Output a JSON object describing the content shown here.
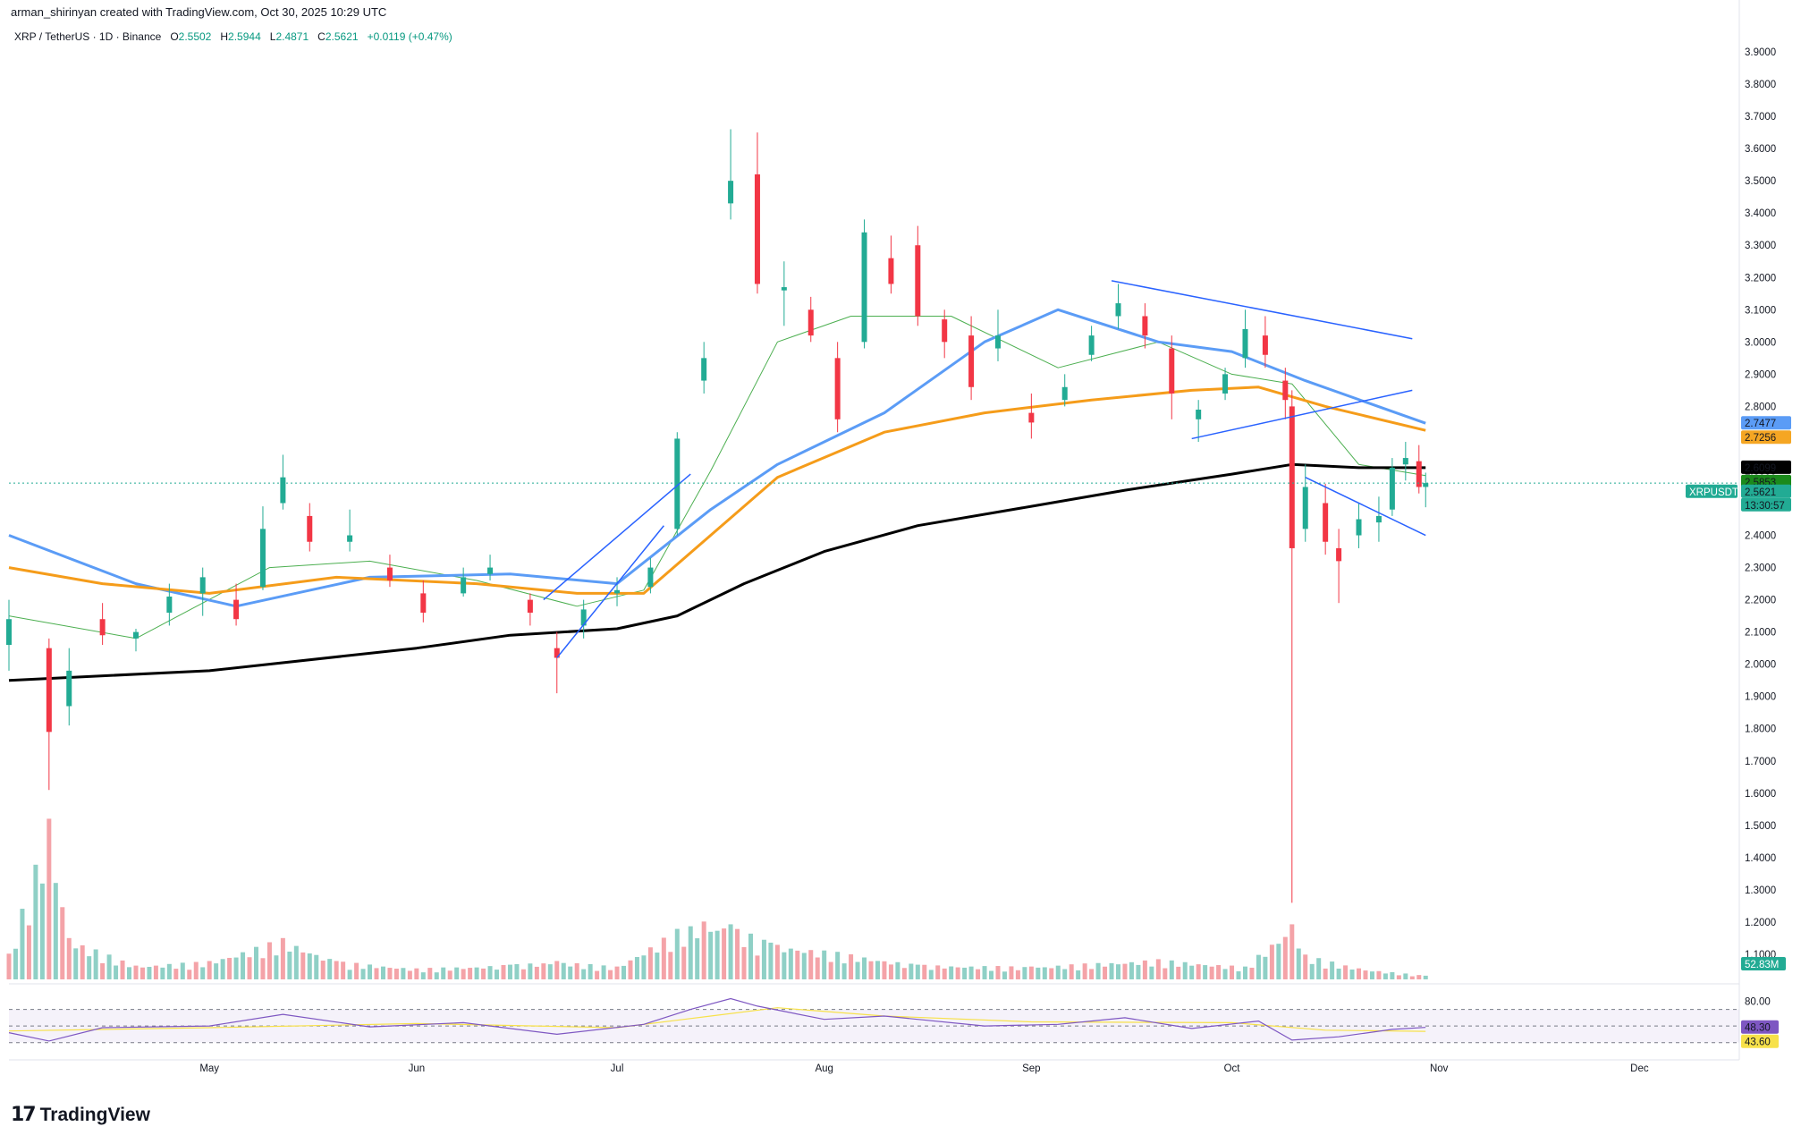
{
  "attribution": "arman_shirinyan created with TradingView.com, Oct 30, 2025 10:29 UTC",
  "header": {
    "symbol": "XRP / TetherUS · 1D · Binance",
    "open_label": "O",
    "open": "2.5502",
    "high_label": "H",
    "high": "2.5944",
    "low_label": "L",
    "low": "2.4871",
    "close_label": "C",
    "close": "2.5621",
    "change": "+0.0119 (+0.47%)"
  },
  "price_axis": {
    "ticks": [
      "3.9000",
      "3.8000",
      "3.7000",
      "3.6000",
      "3.5000",
      "3.4000",
      "3.3000",
      "3.2000",
      "3.1000",
      "3.0000",
      "2.9000",
      "2.8000",
      "2.7000",
      "2.6000",
      "2.5000",
      "2.4000",
      "2.3000",
      "2.2000",
      "2.1000",
      "2.0000",
      "1.9000",
      "1.8000",
      "1.7000",
      "1.6000",
      "1.5000",
      "1.4000",
      "1.3000",
      "1.2000",
      "1.1000"
    ],
    "tags": [
      {
        "label": "2.7477",
        "color": "#5b9cf6",
        "text_color": "#ffffff"
      },
      {
        "label": "2.7256",
        "color": "#f5a623",
        "text_color": "#131722"
      },
      {
        "label": "2.6099",
        "color": "#000000",
        "text_color": "#ffffff"
      },
      {
        "label": "2.5853",
        "color": "#1b8a1b",
        "text_color": "#ffffff"
      },
      {
        "label": "2.5621",
        "color": "#22ab94",
        "text_color": "#ffffff"
      },
      {
        "label": "13:30:57",
        "color": "#22ab94",
        "text_color": "#ffffff"
      }
    ],
    "symbol_tag": "XRPUSDT",
    "volume_tag": "52.83M"
  },
  "rsi_axis": {
    "ticks": [
      "80.00"
    ],
    "tags": [
      {
        "label": "48.30",
        "color": "#7e57c2",
        "text_color": "#ffffff"
      },
      {
        "label": "43.60",
        "color": "#f7e14a",
        "text_color": "#131722"
      }
    ]
  },
  "time_axis": [
    "May",
    "Jun",
    "Jul",
    "Aug",
    "Sep",
    "Oct",
    "Nov",
    "Dec"
  ],
  "logo_text": "TradingView",
  "colors": {
    "up": "#22ab94",
    "down": "#f23645",
    "vol_up": "#8fd0c6",
    "vol_down": "#f4a3a8",
    "ma_black": "#000000",
    "ma_orange": "#f59c1a",
    "ma_blue": "#5b9cf6",
    "ma_green": "#4caf50",
    "trendline": "#2962ff",
    "rsi": "#7e57c2",
    "rsi_ma": "#f7e14a"
  },
  "chart_data": {
    "type": "candlestick",
    "symbol": "XRP / TetherUS",
    "interval": "1D",
    "exchange": "Binance",
    "y_range": [
      1.05,
      3.95
    ],
    "x_range": [
      "2025-04-01",
      "2025-12-15"
    ],
    "last_close": 2.5621,
    "candles": [
      {
        "date": "2025-04-01",
        "o": 2.06,
        "h": 2.2,
        "l": 1.98,
        "c": 2.14
      },
      {
        "date": "2025-04-07",
        "o": 2.05,
        "h": 2.08,
        "l": 1.61,
        "c": 1.79
      },
      {
        "date": "2025-04-10",
        "o": 1.87,
        "h": 2.05,
        "l": 1.81,
        "c": 1.98
      },
      {
        "date": "2025-04-15",
        "o": 2.14,
        "h": 2.19,
        "l": 2.06,
        "c": 2.09
      },
      {
        "date": "2025-04-20",
        "o": 2.08,
        "h": 2.11,
        "l": 2.04,
        "c": 2.1
      },
      {
        "date": "2025-04-25",
        "o": 2.16,
        "h": 2.25,
        "l": 2.12,
        "c": 2.21
      },
      {
        "date": "2025-04-30",
        "o": 2.22,
        "h": 2.3,
        "l": 2.15,
        "c": 2.27
      },
      {
        "date": "2025-05-05",
        "o": 2.2,
        "h": 2.25,
        "l": 2.12,
        "c": 2.14
      },
      {
        "date": "2025-05-09",
        "o": 2.24,
        "h": 2.49,
        "l": 2.23,
        "c": 2.42
      },
      {
        "date": "2025-05-12",
        "o": 2.5,
        "h": 2.65,
        "l": 2.48,
        "c": 2.58
      },
      {
        "date": "2025-05-16",
        "o": 2.46,
        "h": 2.5,
        "l": 2.35,
        "c": 2.38
      },
      {
        "date": "2025-05-22",
        "o": 2.38,
        "h": 2.48,
        "l": 2.35,
        "c": 2.4
      },
      {
        "date": "2025-05-28",
        "o": 2.3,
        "h": 2.34,
        "l": 2.24,
        "c": 2.26
      },
      {
        "date": "2025-06-02",
        "o": 2.22,
        "h": 2.26,
        "l": 2.13,
        "c": 2.16
      },
      {
        "date": "2025-06-08",
        "o": 2.22,
        "h": 2.3,
        "l": 2.21,
        "c": 2.27
      },
      {
        "date": "2025-06-12",
        "o": 2.28,
        "h": 2.34,
        "l": 2.26,
        "c": 2.3
      },
      {
        "date": "2025-06-18",
        "o": 2.2,
        "h": 2.22,
        "l": 2.12,
        "c": 2.16
      },
      {
        "date": "2025-06-22",
        "o": 2.05,
        "h": 2.1,
        "l": 1.91,
        "c": 2.02
      },
      {
        "date": "2025-06-26",
        "o": 2.12,
        "h": 2.2,
        "l": 2.08,
        "c": 2.17
      },
      {
        "date": "2025-07-01",
        "o": 2.22,
        "h": 2.27,
        "l": 2.18,
        "c": 2.23
      },
      {
        "date": "2025-07-06",
        "o": 2.24,
        "h": 2.33,
        "l": 2.22,
        "c": 2.3
      },
      {
        "date": "2025-07-10",
        "o": 2.42,
        "h": 2.72,
        "l": 2.4,
        "c": 2.7
      },
      {
        "date": "2025-07-14",
        "o": 2.88,
        "h": 3.0,
        "l": 2.84,
        "c": 2.95
      },
      {
        "date": "2025-07-18",
        "o": 3.43,
        "h": 3.66,
        "l": 3.38,
        "c": 3.5
      },
      {
        "date": "2025-07-22",
        "o": 3.52,
        "h": 3.65,
        "l": 3.15,
        "c": 3.18
      },
      {
        "date": "2025-07-26",
        "o": 3.16,
        "h": 3.25,
        "l": 3.05,
        "c": 3.17
      },
      {
        "date": "2025-07-30",
        "o": 3.1,
        "h": 3.14,
        "l": 3.0,
        "c": 3.02
      },
      {
        "date": "2025-08-03",
        "o": 2.95,
        "h": 3.0,
        "l": 2.72,
        "c": 2.76
      },
      {
        "date": "2025-08-07",
        "o": 3.0,
        "h": 3.38,
        "l": 2.98,
        "c": 3.34
      },
      {
        "date": "2025-08-11",
        "o": 3.26,
        "h": 3.33,
        "l": 3.15,
        "c": 3.18
      },
      {
        "date": "2025-08-15",
        "o": 3.3,
        "h": 3.36,
        "l": 3.05,
        "c": 3.08
      },
      {
        "date": "2025-08-19",
        "o": 3.07,
        "h": 3.1,
        "l": 2.95,
        "c": 3.0
      },
      {
        "date": "2025-08-23",
        "o": 3.02,
        "h": 3.08,
        "l": 2.82,
        "c": 2.86
      },
      {
        "date": "2025-08-27",
        "o": 2.98,
        "h": 3.1,
        "l": 2.94,
        "c": 3.02
      },
      {
        "date": "2025-09-01",
        "o": 2.78,
        "h": 2.84,
        "l": 2.7,
        "c": 2.75
      },
      {
        "date": "2025-09-06",
        "o": 2.82,
        "h": 2.9,
        "l": 2.8,
        "c": 2.86
      },
      {
        "date": "2025-09-10",
        "o": 2.96,
        "h": 3.05,
        "l": 2.94,
        "c": 3.02
      },
      {
        "date": "2025-09-14",
        "o": 3.08,
        "h": 3.18,
        "l": 3.04,
        "c": 3.12
      },
      {
        "date": "2025-09-18",
        "o": 3.08,
        "h": 3.12,
        "l": 2.98,
        "c": 3.02
      },
      {
        "date": "2025-09-22",
        "o": 2.98,
        "h": 3.02,
        "l": 2.76,
        "c": 2.84
      },
      {
        "date": "2025-09-26",
        "o": 2.76,
        "h": 2.82,
        "l": 2.69,
        "c": 2.79
      },
      {
        "date": "2025-09-30",
        "o": 2.84,
        "h": 2.92,
        "l": 2.82,
        "c": 2.9
      },
      {
        "date": "2025-10-03",
        "o": 2.95,
        "h": 3.1,
        "l": 2.92,
        "c": 3.04
      },
      {
        "date": "2025-10-06",
        "o": 3.02,
        "h": 3.08,
        "l": 2.92,
        "c": 2.96
      },
      {
        "date": "2025-10-09",
        "o": 2.88,
        "h": 2.92,
        "l": 2.76,
        "c": 2.82
      },
      {
        "date": "2025-10-10",
        "o": 2.8,
        "h": 2.85,
        "l": 1.26,
        "c": 2.36
      },
      {
        "date": "2025-10-12",
        "o": 2.42,
        "h": 2.62,
        "l": 2.38,
        "c": 2.55
      },
      {
        "date": "2025-10-15",
        "o": 2.5,
        "h": 2.56,
        "l": 2.34,
        "c": 2.38
      },
      {
        "date": "2025-10-17",
        "o": 2.36,
        "h": 2.42,
        "l": 2.19,
        "c": 2.32
      },
      {
        "date": "2025-10-20",
        "o": 2.4,
        "h": 2.5,
        "l": 2.36,
        "c": 2.45
      },
      {
        "date": "2025-10-23",
        "o": 2.44,
        "h": 2.52,
        "l": 2.38,
        "c": 2.46
      },
      {
        "date": "2025-10-25",
        "o": 2.48,
        "h": 2.64,
        "l": 2.46,
        "c": 2.61
      },
      {
        "date": "2025-10-27",
        "o": 2.62,
        "h": 2.69,
        "l": 2.57,
        "c": 2.64
      },
      {
        "date": "2025-10-29",
        "o": 2.63,
        "h": 2.68,
        "l": 2.53,
        "c": 2.55
      },
      {
        "date": "2025-10-30",
        "o": 2.5502,
        "h": 2.5944,
        "l": 2.4871,
        "c": 2.5621
      }
    ],
    "ma_black": [
      [
        "2025-04-01",
        1.95
      ],
      [
        "2025-05-01",
        1.98
      ],
      [
        "2025-06-01",
        2.05
      ],
      [
        "2025-06-15",
        2.09
      ],
      [
        "2025-07-01",
        2.11
      ],
      [
        "2025-07-10",
        2.15
      ],
      [
        "2025-07-20",
        2.25
      ],
      [
        "2025-08-01",
        2.35
      ],
      [
        "2025-08-15",
        2.43
      ],
      [
        "2025-09-01",
        2.49
      ],
      [
        "2025-09-15",
        2.54
      ],
      [
        "2025-10-01",
        2.59
      ],
      [
        "2025-10-10",
        2.62
      ],
      [
        "2025-10-20",
        2.61
      ],
      [
        "2025-10-30",
        2.6099
      ]
    ],
    "ma_orange": [
      [
        "2025-04-01",
        2.3
      ],
      [
        "2025-04-15",
        2.25
      ],
      [
        "2025-05-01",
        2.22
      ],
      [
        "2025-05-20",
        2.27
      ],
      [
        "2025-06-10",
        2.25
      ],
      [
        "2025-06-25",
        2.22
      ],
      [
        "2025-07-05",
        2.22
      ],
      [
        "2025-07-15",
        2.4
      ],
      [
        "2025-07-25",
        2.58
      ],
      [
        "2025-08-10",
        2.72
      ],
      [
        "2025-08-25",
        2.78
      ],
      [
        "2025-09-10",
        2.82
      ],
      [
        "2025-09-25",
        2.85
      ],
      [
        "2025-10-05",
        2.86
      ],
      [
        "2025-10-15",
        2.8
      ],
      [
        "2025-10-30",
        2.7256
      ]
    ],
    "ma_blue": [
      [
        "2025-04-01",
        2.4
      ],
      [
        "2025-04-20",
        2.25
      ],
      [
        "2025-05-05",
        2.18
      ],
      [
        "2025-05-25",
        2.27
      ],
      [
        "2025-06-15",
        2.28
      ],
      [
        "2025-07-01",
        2.25
      ],
      [
        "2025-07-15",
        2.48
      ],
      [
        "2025-07-25",
        2.62
      ],
      [
        "2025-08-10",
        2.78
      ],
      [
        "2025-08-25",
        3.0
      ],
      [
        "2025-09-05",
        3.1
      ],
      [
        "2025-09-20",
        3.0
      ],
      [
        "2025-10-01",
        2.97
      ],
      [
        "2025-10-12",
        2.88
      ],
      [
        "2025-10-30",
        2.7477
      ]
    ],
    "ma_green": [
      [
        "2025-04-01",
        2.15
      ],
      [
        "2025-04-20",
        2.08
      ],
      [
        "2025-05-10",
        2.3
      ],
      [
        "2025-05-25",
        2.32
      ],
      [
        "2025-06-10",
        2.26
      ],
      [
        "2025-06-25",
        2.18
      ],
      [
        "2025-07-05",
        2.23
      ],
      [
        "2025-07-15",
        2.6
      ],
      [
        "2025-07-25",
        3.0
      ],
      [
        "2025-08-05",
        3.08
      ],
      [
        "2025-08-20",
        3.08
      ],
      [
        "2025-09-05",
        2.92
      ],
      [
        "2025-09-20",
        3.0
      ],
      [
        "2025-10-01",
        2.9
      ],
      [
        "2025-10-10",
        2.87
      ],
      [
        "2025-10-20",
        2.62
      ],
      [
        "2025-10-30",
        2.5853
      ]
    ],
    "trendlines": [
      {
        "from": [
          "2025-06-22",
          2.02
        ],
        "to": [
          "2025-07-08",
          2.43
        ]
      },
      {
        "from": [
          "2025-06-20",
          2.2
        ],
        "to": [
          "2025-07-12",
          2.59
        ]
      },
      {
        "from": [
          "2025-09-13",
          3.19
        ],
        "to": [
          "2025-10-28",
          3.01
        ]
      },
      {
        "from": [
          "2025-09-25",
          2.7
        ],
        "to": [
          "2025-10-28",
          2.85
        ]
      },
      {
        "from": [
          "2025-10-12",
          2.58
        ],
        "to": [
          "2025-10-30",
          2.4
        ]
      }
    ],
    "volume_range": [
      0,
      190
    ],
    "volume": [
      [
        "2025-04-01",
        28,
        "d"
      ],
      [
        "2025-04-07",
        175,
        "d"
      ],
      [
        "2025-04-10",
        45,
        "u"
      ],
      [
        "2025-04-20",
        15,
        "u"
      ],
      [
        "2025-05-01",
        20,
        "d"
      ],
      [
        "2025-05-12",
        45,
        "u"
      ],
      [
        "2025-05-20",
        20,
        "d"
      ],
      [
        "2025-06-01",
        12,
        "u"
      ],
      [
        "2025-06-15",
        16,
        "d"
      ],
      [
        "2025-06-22",
        20,
        "d"
      ],
      [
        "2025-07-01",
        14,
        "u"
      ],
      [
        "2025-07-10",
        55,
        "u"
      ],
      [
        "2025-07-14",
        63,
        "u"
      ],
      [
        "2025-07-18",
        60,
        "u"
      ],
      [
        "2025-07-24",
        40,
        "d"
      ],
      [
        "2025-08-03",
        30,
        "d"
      ],
      [
        "2025-08-15",
        16,
        "d"
      ],
      [
        "2025-09-01",
        14,
        "d"
      ],
      [
        "2025-09-20",
        22,
        "d"
      ],
      [
        "2025-10-03",
        14,
        "u"
      ],
      [
        "2025-10-10",
        60,
        "d"
      ],
      [
        "2025-10-12",
        27,
        "u"
      ],
      [
        "2025-10-20",
        12,
        "d"
      ],
      [
        "2025-10-30",
        4,
        "u"
      ]
    ],
    "rsi_range": [
      20,
      90
    ],
    "rsi_levels": [
      70,
      50,
      30
    ],
    "rsi": [
      [
        "2025-04-01",
        42
      ],
      [
        "2025-04-07",
        32
      ],
      [
        "2025-04-15",
        48
      ],
      [
        "2025-05-01",
        50
      ],
      [
        "2025-05-12",
        64
      ],
      [
        "2025-05-25",
        49
      ],
      [
        "2025-06-08",
        54
      ],
      [
        "2025-06-22",
        40
      ],
      [
        "2025-07-05",
        52
      ],
      [
        "2025-07-12",
        70
      ],
      [
        "2025-07-18",
        83
      ],
      [
        "2025-07-22",
        74
      ],
      [
        "2025-08-01",
        58
      ],
      [
        "2025-08-10",
        62
      ],
      [
        "2025-08-25",
        50
      ],
      [
        "2025-09-05",
        52
      ],
      [
        "2025-09-15",
        60
      ],
      [
        "2025-09-25",
        47
      ],
      [
        "2025-10-05",
        56
      ],
      [
        "2025-10-10",
        33
      ],
      [
        "2025-10-17",
        37
      ],
      [
        "2025-10-25",
        46
      ],
      [
        "2025-10-30",
        48.3
      ]
    ],
    "rsi_ma": [
      [
        "2025-04-01",
        44
      ],
      [
        "2025-05-01",
        48
      ],
      [
        "2025-06-01",
        53
      ],
      [
        "2025-07-01",
        48
      ],
      [
        "2025-07-15",
        62
      ],
      [
        "2025-07-25",
        72
      ],
      [
        "2025-08-10",
        62
      ],
      [
        "2025-09-01",
        55
      ],
      [
        "2025-10-01",
        54
      ],
      [
        "2025-10-15",
        45
      ],
      [
        "2025-10-30",
        43.6
      ]
    ]
  }
}
